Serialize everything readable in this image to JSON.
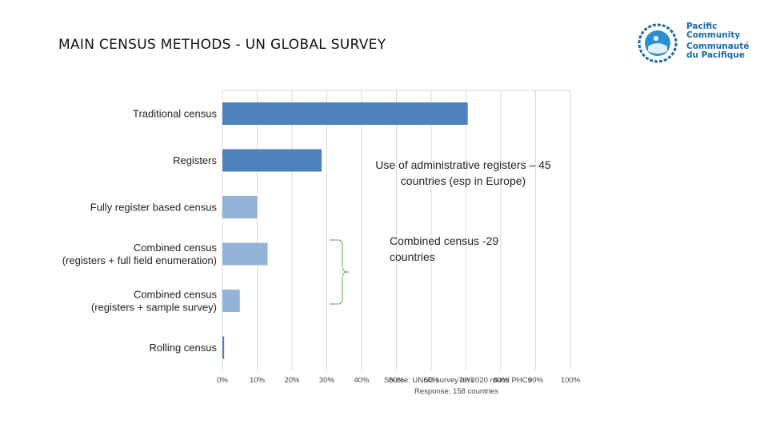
{
  "slide": {
    "title": "MAIN CENSUS METHODS - UN GLOBAL SURVEY"
  },
  "logo": {
    "line1": "Pacific",
    "line2": "Community",
    "line3": "Communauté",
    "line4": "du Pacifique",
    "icon": "pacific-community-emblem",
    "color": "#1b6aa5"
  },
  "annotations": {
    "admin_registers": "Use of administrative registers – 45 countries (esp in Europe)",
    "combined_census": "Combined census -29 countries",
    "source_line1": "Source: UNSD survey on 2020 round PHCs",
    "source_line2": "Response: 158 countries"
  },
  "colors": {
    "bar_dark": "#4f81bd",
    "bar_light": "#95b3d7",
    "grid": "#d9d9d9",
    "bracket": "#77b36b"
  },
  "chart_data": {
    "type": "bar",
    "orientation": "horizontal",
    "categories": [
      [
        "Traditional census"
      ],
      [
        "Registers"
      ],
      [
        "Fully register based census"
      ],
      [
        "Combined census",
        "(registers + full field enumeration)"
      ],
      [
        "Combined census",
        "(registers + sample survey)"
      ],
      [
        "Rolling census"
      ]
    ],
    "values": [
      70.5,
      28.5,
      10,
      13,
      5,
      0.5
    ],
    "shade": [
      "dark",
      "dark",
      "light",
      "light",
      "light",
      "dark"
    ],
    "x_ticks": [
      "0%",
      "10%",
      "20%",
      "30%",
      "40%",
      "50%",
      "60%",
      "70%",
      "80%",
      "90%",
      "100%"
    ],
    "xlim": [
      0,
      100
    ],
    "grid": true
  }
}
